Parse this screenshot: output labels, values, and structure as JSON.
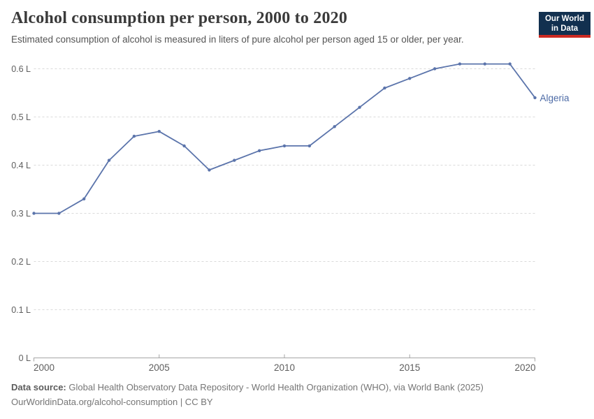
{
  "header": {
    "title": "Alcohol consumption per person, 2000 to 2020",
    "subtitle": "Estimated consumption of alcohol is measured in liters of pure alcohol per person aged 15 or older, per year.",
    "logo": {
      "line1": "Our World",
      "line2": "in Data"
    }
  },
  "chart_data": {
    "type": "line",
    "title": "Alcohol consumption per person, 2000 to 2020",
    "xlabel": "",
    "ylabel": "liters of pure alcohol per person",
    "xlim": [
      2000,
      2020
    ],
    "ylim": [
      0,
      0.6
    ],
    "grid": "horizontal-dashed",
    "legend_position": "end-of-line-label",
    "x": [
      2000,
      2001,
      2002,
      2003,
      2004,
      2005,
      2006,
      2007,
      2008,
      2009,
      2010,
      2011,
      2012,
      2013,
      2014,
      2015,
      2016,
      2017,
      2018,
      2019,
      2020
    ],
    "series": [
      {
        "name": "Algeria",
        "values": [
          0.3,
          0.3,
          0.33,
          0.41,
          0.46,
          0.47,
          0.44,
          0.39,
          0.41,
          0.43,
          0.44,
          0.44,
          0.48,
          0.52,
          0.56,
          0.58,
          0.6,
          0.61,
          0.61,
          0.61,
          0.54
        ]
      }
    ],
    "xticks": [
      2000,
      2005,
      2010,
      2015,
      2020
    ],
    "yticks": [
      {
        "value": 0.0,
        "label": "0 L"
      },
      {
        "value": 0.1,
        "label": "0.1 L"
      },
      {
        "value": 0.2,
        "label": "0.2 L"
      },
      {
        "value": 0.3,
        "label": "0.3 L"
      },
      {
        "value": 0.4,
        "label": "0.4 L"
      },
      {
        "value": 0.5,
        "label": "0.5 L"
      },
      {
        "value": 0.6,
        "label": "0.6 L"
      }
    ]
  },
  "colors": {
    "series_line": "#5b74ab",
    "end_label": "#4d6ba6",
    "gridline": "#dadada",
    "axis": "#a5a5a5",
    "tick_label": "#5e5e5e",
    "logo_bg": "#12304f",
    "logo_bar": "#cc2a22"
  },
  "footer": {
    "source_label": "Data source:",
    "source_text": "Global Health Observatory Data Repository - World Health Organization (WHO), via World Bank (2025)",
    "license_line": "OurWorldinData.org/alcohol-consumption | CC BY"
  }
}
